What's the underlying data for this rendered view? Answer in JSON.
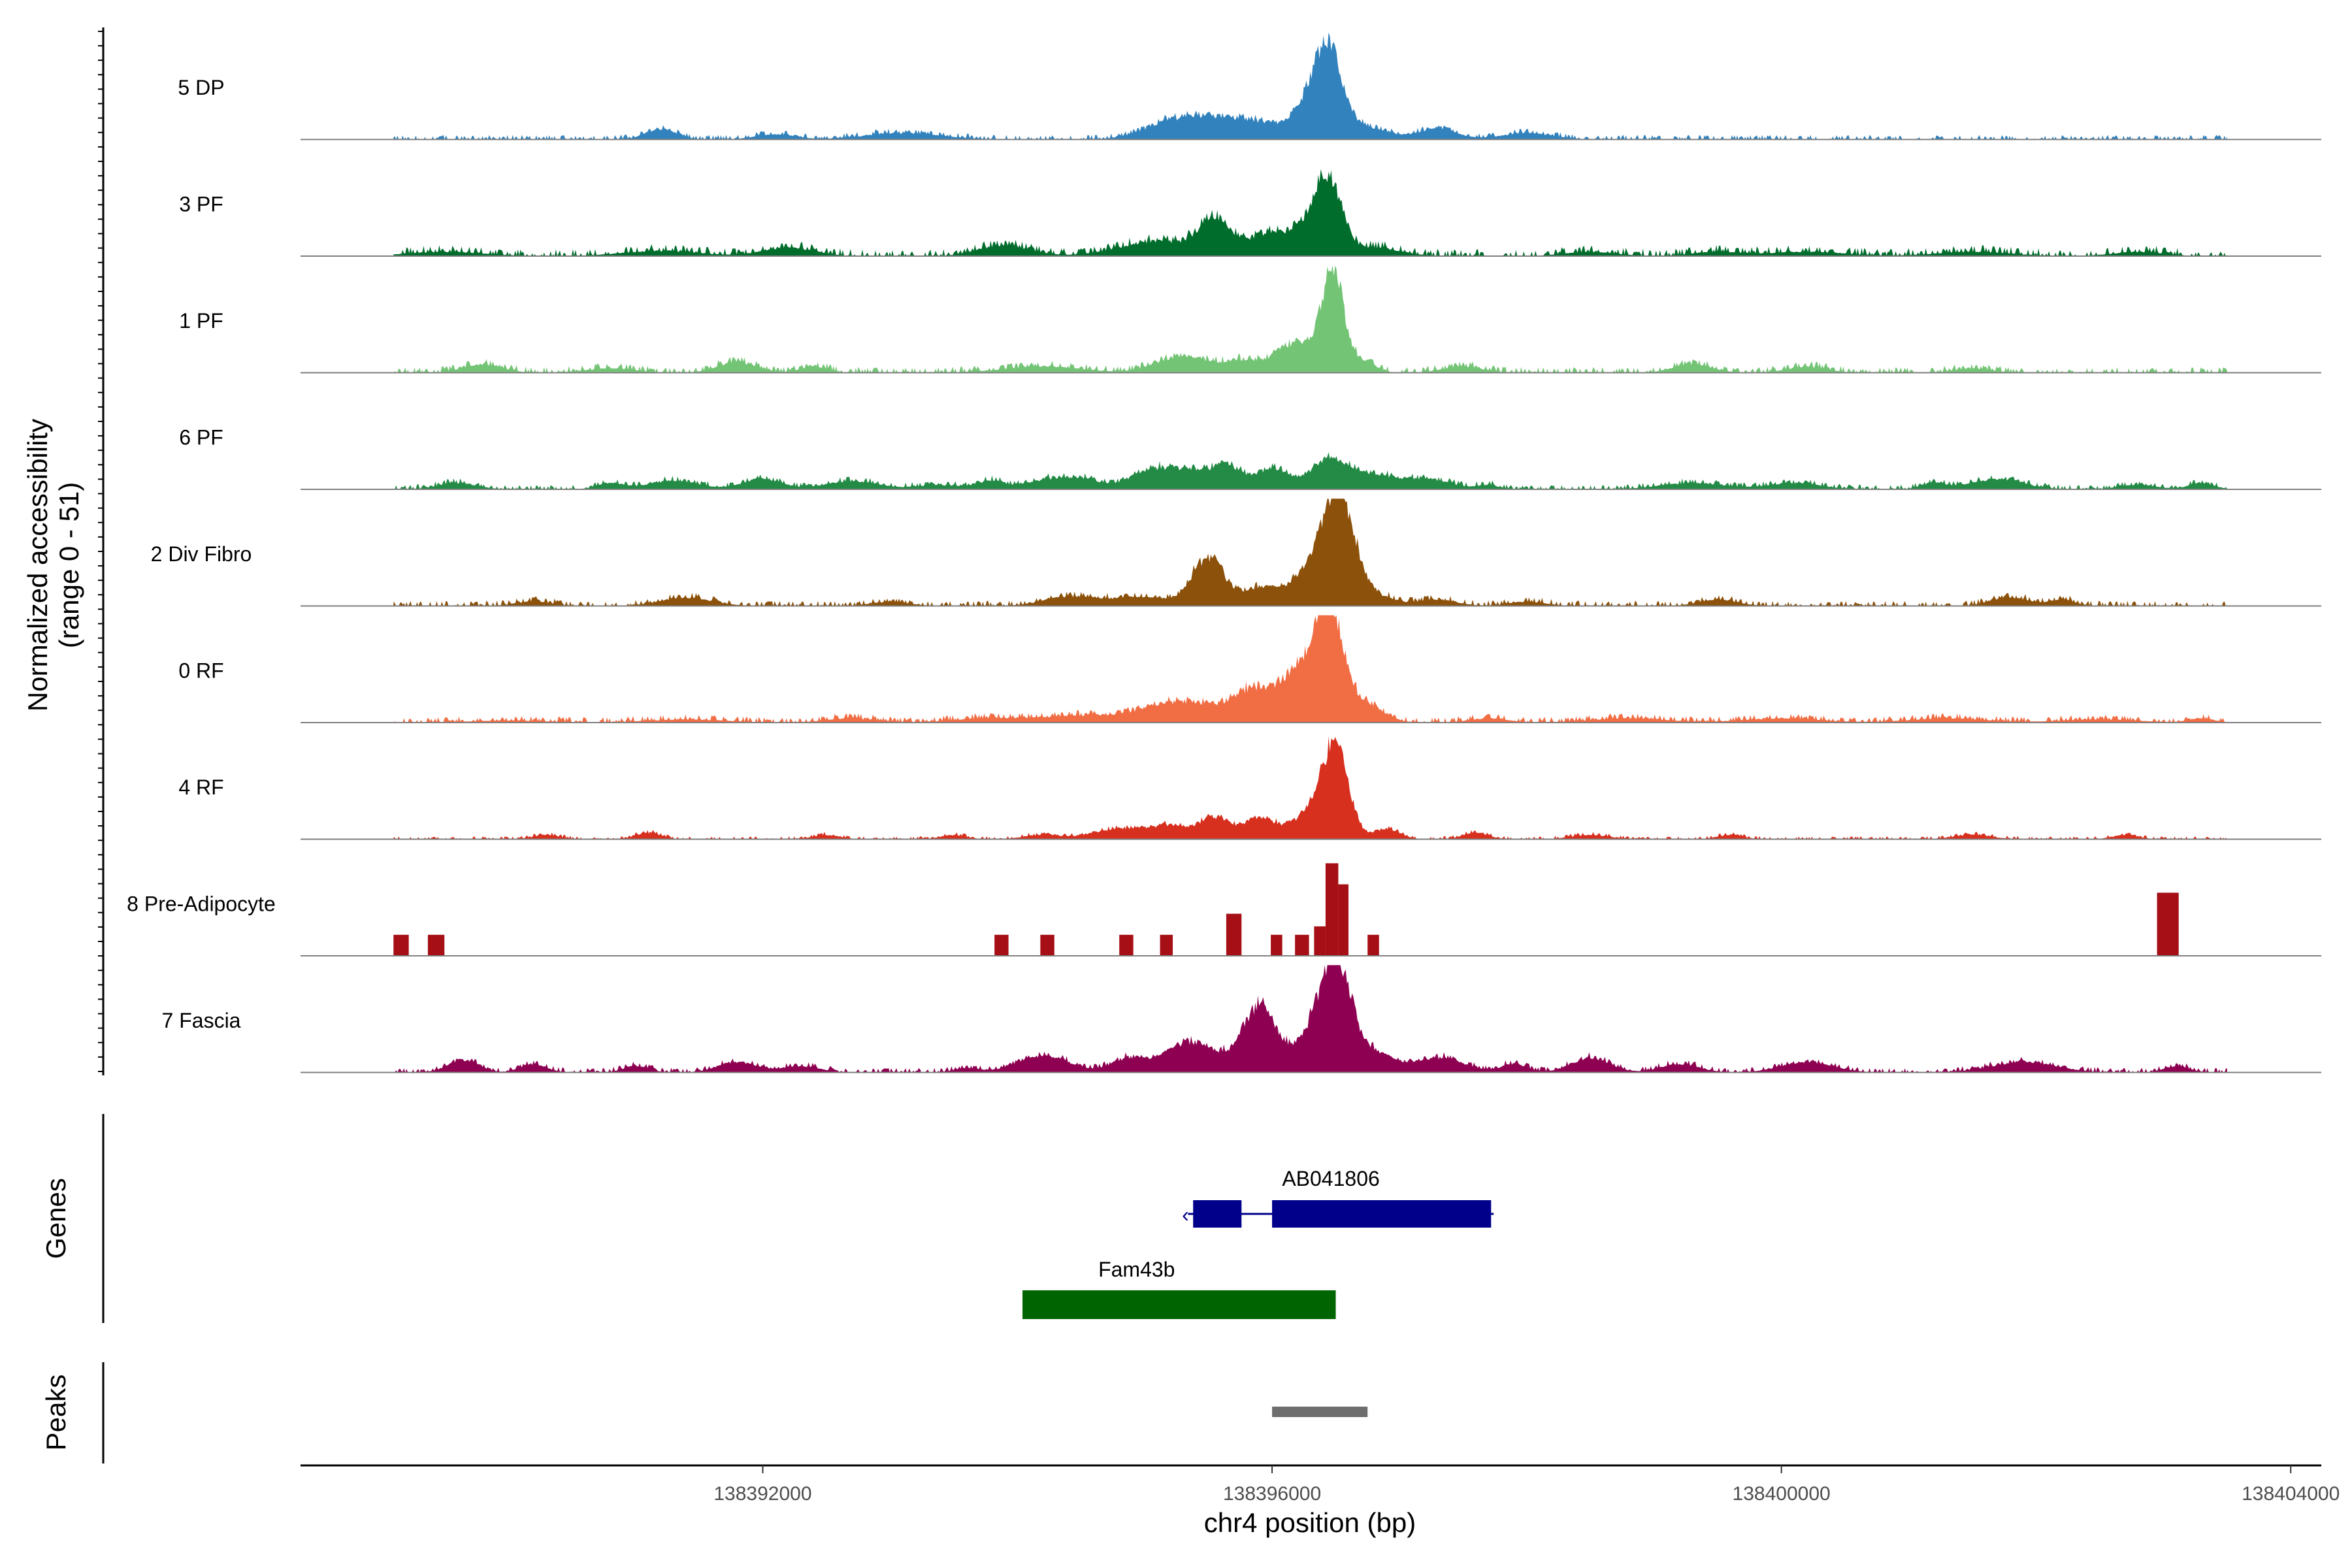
{
  "chart_data": {
    "type": "area",
    "title": "",
    "ylabel_line1": "Normalized accessibility",
    "ylabel_line2": "(range 0 - 51)",
    "y_range": [
      0,
      51
    ],
    "xlabel": "chr4 position (bp)",
    "x_range": [
      138388370,
      138404240
    ],
    "x_ticks": [
      {
        "value": 138392000,
        "label": "138392000"
      },
      {
        "value": 138396000,
        "label": "138396000"
      },
      {
        "value": 138400000,
        "label": "138400000"
      },
      {
        "value": 138404000,
        "label": "138404000"
      }
    ],
    "data_extent": [
      138389100,
      138403500
    ],
    "series": [
      {
        "name": "5 DP",
        "color": "#3182BD",
        "base": 0.8,
        "peaks": [
          [
            138391200,
            120,
            5
          ],
          [
            138392100,
            150,
            2.5
          ],
          [
            138393100,
            300,
            3
          ],
          [
            138395300,
            250,
            10
          ],
          [
            138395700,
            200,
            7
          ],
          [
            138396000,
            150,
            5
          ],
          [
            138396450,
            100,
            38
          ],
          [
            138396300,
            120,
            16
          ],
          [
            138396700,
            200,
            6
          ],
          [
            138397300,
            150,
            5
          ],
          [
            138398000,
            200,
            3
          ]
        ]
      },
      {
        "name": "3 PF",
        "color": "#006D2C",
        "base": 1.2,
        "peaks": [
          [
            138389500,
            300,
            2
          ],
          [
            138391200,
            300,
            2.5
          ],
          [
            138392200,
            200,
            4
          ],
          [
            138393900,
            200,
            5
          ],
          [
            138395100,
            300,
            7
          ],
          [
            138395550,
            120,
            16
          ],
          [
            138395950,
            150,
            10
          ],
          [
            138396450,
            100,
            28
          ],
          [
            138396300,
            150,
            14
          ],
          [
            138396800,
            200,
            4
          ],
          [
            138398500,
            200,
            2
          ],
          [
            138399500,
            200,
            2
          ],
          [
            138400200,
            300,
            2
          ],
          [
            138401500,
            300,
            2
          ],
          [
            138402800,
            200,
            2
          ]
        ]
      },
      {
        "name": "1 PF",
        "color": "#74C476",
        "base": 1.0,
        "peaks": [
          [
            138389800,
            150,
            4
          ],
          [
            138390800,
            200,
            2
          ],
          [
            138391800,
            150,
            5
          ],
          [
            138392400,
            100,
            3
          ],
          [
            138394200,
            300,
            3
          ],
          [
            138395300,
            200,
            8
          ],
          [
            138395800,
            150,
            6
          ],
          [
            138396100,
            100,
            9
          ],
          [
            138396480,
            80,
            46
          ],
          [
            138396300,
            120,
            12
          ],
          [
            138396700,
            100,
            6
          ],
          [
            138397500,
            150,
            3
          ],
          [
            138399300,
            150,
            4
          ],
          [
            138400200,
            150,
            3
          ],
          [
            138401500,
            150,
            2
          ]
        ]
      },
      {
        "name": "6 PF",
        "color": "#238B45",
        "base": 0.8,
        "peaks": [
          [
            138389600,
            150,
            3
          ],
          [
            138390800,
            100,
            3
          ],
          [
            138391300,
            200,
            4
          ],
          [
            138392000,
            150,
            5
          ],
          [
            138392700,
            200,
            4
          ],
          [
            138393400,
            200,
            2
          ],
          [
            138393800,
            100,
            4
          ],
          [
            138394200,
            150,
            4
          ],
          [
            138394500,
            150,
            5
          ],
          [
            138395000,
            150,
            6
          ],
          [
            138395300,
            200,
            9
          ],
          [
            138395650,
            120,
            10
          ],
          [
            138396000,
            120,
            10
          ],
          [
            138396450,
            150,
            14
          ],
          [
            138396800,
            150,
            6
          ],
          [
            138397200,
            200,
            5
          ],
          [
            138397700,
            80,
            2
          ],
          [
            138399300,
            250,
            3
          ],
          [
            138400100,
            200,
            3
          ],
          [
            138401200,
            100,
            3
          ],
          [
            138401700,
            200,
            5
          ],
          [
            138402800,
            150,
            2
          ],
          [
            138403300,
            100,
            3
          ]
        ]
      },
      {
        "name": "2 Div Fibro",
        "color": "#8C510A",
        "base": 0.9,
        "peaks": [
          [
            138390200,
            150,
            2
          ],
          [
            138391400,
            200,
            4
          ],
          [
            138393000,
            150,
            2
          ],
          [
            138394400,
            200,
            4
          ],
          [
            138395000,
            300,
            4
          ],
          [
            138395500,
            120,
            22
          ],
          [
            138395900,
            150,
            8
          ],
          [
            138396520,
            120,
            50
          ],
          [
            138396300,
            150,
            16
          ],
          [
            138396800,
            150,
            5
          ],
          [
            138397300,
            150,
            3
          ],
          [
            138398000,
            150,
            2
          ],
          [
            138399500,
            150,
            3
          ],
          [
            138401800,
            150,
            4
          ],
          [
            138402200,
            100,
            3
          ]
        ]
      },
      {
        "name": "0 RF",
        "color": "#F16D44",
        "base": 0.9,
        "peaks": [
          [
            138390000,
            300,
            1
          ],
          [
            138391400,
            300,
            1.5
          ],
          [
            138392700,
            200,
            2
          ],
          [
            138393800,
            300,
            2
          ],
          [
            138394500,
            300,
            3
          ],
          [
            138395300,
            300,
            10
          ],
          [
            138395850,
            150,
            14
          ],
          [
            138396150,
            120,
            12
          ],
          [
            138396450,
            100,
            46
          ],
          [
            138396300,
            150,
            18
          ],
          [
            138396700,
            150,
            10
          ],
          [
            138397700,
            150,
            2
          ],
          [
            138398800,
            300,
            2
          ],
          [
            138400000,
            300,
            2
          ],
          [
            138401300,
            300,
            2
          ],
          [
            138402500,
            300,
            1.5
          ],
          [
            138403300,
            100,
            2
          ]
        ]
      },
      {
        "name": "4 RF",
        "color": "#D7301F",
        "base": 0.5,
        "peaks": [
          [
            138390300,
            100,
            2
          ],
          [
            138391100,
            100,
            3
          ],
          [
            138392500,
            100,
            2
          ],
          [
            138393500,
            100,
            2
          ],
          [
            138394200,
            150,
            2
          ],
          [
            138394800,
            200,
            5
          ],
          [
            138395200,
            150,
            6
          ],
          [
            138395550,
            120,
            10
          ],
          [
            138395900,
            120,
            10
          ],
          [
            138396500,
            100,
            42
          ],
          [
            138396300,
            150,
            12
          ],
          [
            138396900,
            100,
            5
          ],
          [
            138397600,
            100,
            3
          ],
          [
            138398500,
            150,
            2
          ],
          [
            138399600,
            100,
            2
          ],
          [
            138401500,
            150,
            2
          ],
          [
            138402700,
            100,
            2
          ]
        ]
      },
      {
        "name": "8 Pre-Adipocyte",
        "color": "#A50F15",
        "base": 0,
        "bars": [
          [
            138389100,
            138389220,
            10
          ],
          [
            138389370,
            138389500,
            10
          ],
          [
            138393820,
            138393930,
            10
          ],
          [
            138394180,
            138394290,
            10
          ],
          [
            138394800,
            138394910,
            10
          ],
          [
            138395120,
            138395220,
            10
          ],
          [
            138395640,
            138395760,
            20
          ],
          [
            138395990,
            138396080,
            10
          ],
          [
            138396180,
            138396290,
            10
          ],
          [
            138396330,
            138396420,
            14
          ],
          [
            138396420,
            138396520,
            44
          ],
          [
            138396520,
            138396600,
            34
          ],
          [
            138396750,
            138396840,
            10
          ],
          [
            138402950,
            138403120,
            30
          ]
        ]
      },
      {
        "name": "7 Fascia",
        "color": "#8E0152",
        "base": 0.8,
        "peaks": [
          [
            138389650,
            120,
            6
          ],
          [
            138390200,
            100,
            4
          ],
          [
            138391000,
            100,
            3
          ],
          [
            138391800,
            150,
            5
          ],
          [
            138392300,
            150,
            3
          ],
          [
            138393600,
            100,
            2
          ],
          [
            138394200,
            200,
            8
          ],
          [
            138394900,
            150,
            7
          ],
          [
            138395300,
            150,
            10
          ],
          [
            138395550,
            200,
            8
          ],
          [
            138395900,
            120,
            28
          ],
          [
            138396500,
            120,
            48
          ],
          [
            138396300,
            200,
            14
          ],
          [
            138396800,
            150,
            8
          ],
          [
            138397300,
            200,
            7
          ],
          [
            138397900,
            100,
            4
          ],
          [
            138398500,
            150,
            7
          ],
          [
            138399200,
            150,
            4
          ],
          [
            138400200,
            200,
            5
          ],
          [
            138401900,
            250,
            5
          ],
          [
            138403100,
            100,
            3
          ]
        ]
      }
    ],
    "genes_label": "Genes",
    "genes": [
      {
        "name": "AB041806",
        "color": "#00008B",
        "start": 138395340,
        "end": 138397740,
        "strand_marker": "‹",
        "exons": [
          [
            138395380,
            138395760
          ],
          [
            138396000,
            138397720
          ]
        ]
      },
      {
        "name": "Fam43b",
        "color": "#006400",
        "start": 138394040,
        "end": 138396500,
        "exons": [
          [
            138394040,
            138396500
          ]
        ]
      }
    ],
    "peaks_label": "Peaks",
    "peak_regions": [
      {
        "start": 138396000,
        "end": 138396750,
        "color": "#6E6E6E"
      }
    ]
  }
}
